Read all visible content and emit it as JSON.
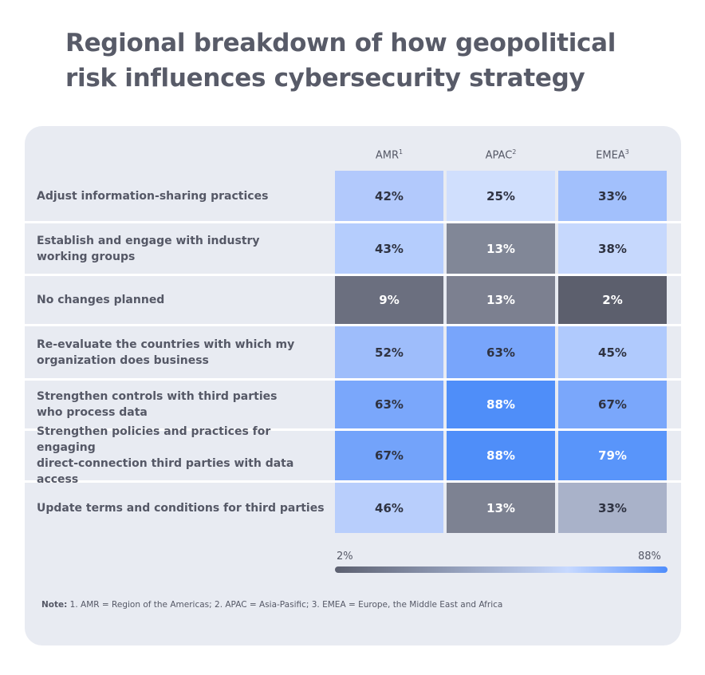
{
  "title_line1": "Regional breakdown of how geopolitical",
  "title_line2": "risk influences cybersecurity strategy",
  "chart_data": {
    "type": "heatmap",
    "columns": [
      {
        "label": "AMR",
        "sup": "1"
      },
      {
        "label": "APAC",
        "sup": "2"
      },
      {
        "label": "EMEA",
        "sup": "3"
      }
    ],
    "rows": [
      {
        "label_lines": [
          "Adjust information-sharing practices"
        ],
        "values": [
          42,
          25,
          33
        ]
      },
      {
        "label_lines": [
          "Establish and engage with industry",
          "working groups"
        ],
        "values": [
          43,
          13,
          38
        ]
      },
      {
        "label_lines": [
          "No changes planned"
        ],
        "values": [
          9,
          13,
          2
        ]
      },
      {
        "label_lines": [
          "Re-evaluate the countries with which my",
          "organization does business"
        ],
        "values": [
          52,
          63,
          45
        ]
      },
      {
        "label_lines": [
          "Strengthen controls with third parties",
          "who process data"
        ],
        "values": [
          63,
          88,
          67
        ]
      },
      {
        "label_lines": [
          "Strengthen policies and practices for engaging",
          "direct-connection third parties with data access"
        ],
        "values": [
          67,
          88,
          79
        ]
      },
      {
        "label_lines": [
          "Update terms and conditions for third parties"
        ],
        "values": [
          46,
          13,
          33
        ]
      }
    ],
    "cell_colors": [
      [
        "#b2c9fc",
        "#d0dffd",
        "#a2c0fc"
      ],
      [
        "#b5cdfd",
        "#818797",
        "#c6d8fd"
      ],
      [
        "#6b6f7f",
        "#7c8090",
        "#5c5f6d"
      ],
      [
        "#9ebdfb",
        "#78a5fb",
        "#b0cafd"
      ],
      [
        "#7aa7fb",
        "#4f8ef9",
        "#7aa7fb"
      ],
      [
        "#73a3fa",
        "#4f8ef9",
        "#5995fa"
      ],
      [
        "#b8cefc",
        "#7d8292",
        "#a9b2c9"
      ]
    ],
    "value_suffix": "%",
    "scale": {
      "min": 2,
      "max": 88,
      "min_label": "2%",
      "max_label": "88%"
    }
  },
  "note_prefix": "Note:",
  "note_text": " 1. AMR = Region of the Americas;  2. APAC = Asia-Pasific; 3. EMEA = Europe, the Middle East and Africa"
}
